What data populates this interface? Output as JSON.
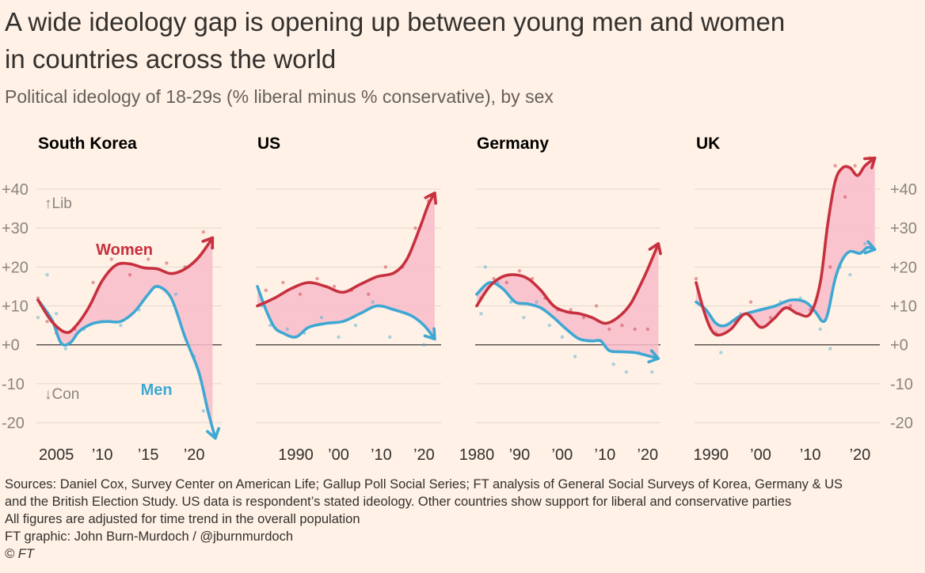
{
  "title_line1": "A wide ideology gap is opening up between young men and women",
  "title_line2": "in countries across the world",
  "subtitle": "Political ideology of 18-29s (% liberal minus % conservative), by sex",
  "footer": {
    "line1": "Sources: Daniel Cox, Survey Center on American Life; Gallup Poll Social Series; FT analysis of General Social Surveys of Korea, Germany & US",
    "line2": "and the British Election Study. US data is respondent’s stated ideology. Other countries show support for liberal and conservative parties",
    "line3": "All figures are adjusted for time trend in the overall population",
    "line4": "FT graphic: John Burn-Murdoch / @jburnmurdoch",
    "line5": "© FT"
  },
  "colors": {
    "women": "#c7303e",
    "men": "#3ea8d3",
    "gap_fill": "#f9bccb",
    "axis_label": "#8a8580",
    "gridline": "#e3d7cc",
    "zero_line": "#4d4845"
  },
  "chart_data": [
    {
      "type": "line",
      "title": "South Korea",
      "ylim": [
        -20,
        40
      ],
      "yticks": [
        -20,
        -10,
        0,
        10,
        20,
        30,
        40
      ],
      "ytick_labels": [
        "-20",
        "-10",
        "+0",
        "+10",
        "+20",
        "+30",
        "+40"
      ],
      "y_axis_annotations": [
        "↑Lib",
        "↓Con"
      ],
      "xlim": [
        2003,
        2023
      ],
      "xticks": [
        2005,
        2010,
        2015,
        2020
      ],
      "xtick_labels": [
        "2005",
        "’10",
        "’15",
        "’20"
      ],
      "series": [
        {
          "name": "Women",
          "color": "#c7303e",
          "x": [
            2003,
            2004.5,
            2006,
            2007,
            2008.5,
            2010,
            2011.5,
            2013,
            2014.5,
            2016,
            2017.5,
            2019,
            2020.5,
            2022
          ],
          "y": [
            11.5,
            6,
            3.2,
            4.5,
            9.5,
            16.5,
            20.5,
            20.8,
            19.8,
            19.5,
            18.3,
            19.5,
            22.5,
            27.5
          ]
        },
        {
          "name": "Men",
          "color": "#3ea8d3",
          "x": [
            2003,
            2004.5,
            2005.5,
            2006.5,
            2007.5,
            2009,
            2010.5,
            2012,
            2013.5,
            2015,
            2016,
            2017.5,
            2019,
            2020.5,
            2021.5,
            2022.3
          ],
          "y": [
            11.5,
            6.5,
            0.5,
            0.5,
            3.5,
            5.5,
            6,
            6,
            8.5,
            13,
            15,
            12,
            2,
            -7,
            -17,
            -24
          ]
        }
      ],
      "points": {
        "women": [
          [
            2003,
            12
          ],
          [
            2004,
            6
          ],
          [
            2005,
            3
          ],
          [
            2007,
            4
          ],
          [
            2009,
            16
          ],
          [
            2011,
            22
          ],
          [
            2013,
            18
          ],
          [
            2015,
            22
          ],
          [
            2017,
            21
          ],
          [
            2019,
            20
          ],
          [
            2021,
            29
          ],
          [
            2022,
            25
          ]
        ],
        "men": [
          [
            2003,
            7
          ],
          [
            2004,
            18
          ],
          [
            2005,
            8
          ],
          [
            2006,
            -1
          ],
          [
            2008,
            4
          ],
          [
            2010,
            6
          ],
          [
            2012,
            5
          ],
          [
            2014,
            9
          ],
          [
            2016,
            15
          ],
          [
            2018,
            13
          ],
          [
            2020,
            -3
          ],
          [
            2021,
            -17
          ]
        ]
      },
      "annotations": [
        {
          "text": "Women",
          "x": 2012.4,
          "y": 24.5,
          "color": "#c7303e"
        },
        {
          "text": "Men",
          "x": 2015.9,
          "y": -11.5,
          "color": "#3ea8d3"
        }
      ]
    },
    {
      "type": "line",
      "title": "US",
      "ylim": [
        -20,
        40
      ],
      "xlim": [
        1981,
        2024
      ],
      "xticks": [
        1990,
        2000,
        2010,
        2020
      ],
      "xtick_labels": [
        "1990",
        "’00",
        "’10",
        "’20"
      ],
      "series": [
        {
          "name": "Women",
          "color": "#c7303e",
          "x": [
            1981,
            1985,
            1989,
            1993,
            1997,
            2001,
            2005,
            2009,
            2013,
            2016,
            2019,
            2021,
            2022.5
          ],
          "y": [
            10,
            12,
            14.5,
            16,
            15,
            13.5,
            15.5,
            17.5,
            18.5,
            22,
            30,
            36,
            39
          ]
        },
        {
          "name": "Men",
          "color": "#3ea8d3",
          "x": [
            1981,
            1983,
            1985,
            1987,
            1990,
            1993,
            1997,
            2001,
            2005,
            2009,
            2013,
            2017,
            2020,
            2022.5
          ],
          "y": [
            15,
            9,
            4.5,
            3,
            2,
            4.5,
            5.5,
            6,
            8,
            10,
            9,
            7.5,
            5,
            1.5
          ]
        }
      ],
      "points": {
        "women": [
          [
            1983,
            14
          ],
          [
            1987,
            16
          ],
          [
            1991,
            13
          ],
          [
            1995,
            17
          ],
          [
            1999,
            15
          ],
          [
            2003,
            14
          ],
          [
            2007,
            13
          ],
          [
            2011,
            20
          ],
          [
            2015,
            20
          ],
          [
            2018,
            30
          ],
          [
            2021,
            37
          ]
        ],
        "men": [
          [
            1982,
            10
          ],
          [
            1984,
            5
          ],
          [
            1988,
            4
          ],
          [
            1992,
            3
          ],
          [
            1996,
            7
          ],
          [
            2000,
            2
          ],
          [
            2004,
            5
          ],
          [
            2008,
            11
          ],
          [
            2012,
            2
          ],
          [
            2016,
            8
          ],
          [
            2020,
            0
          ]
        ]
      }
    },
    {
      "type": "line",
      "title": "Germany",
      "ylim": [
        -20,
        40
      ],
      "xlim": [
        1980,
        2023
      ],
      "xticks": [
        1980,
        1990,
        2000,
        2010,
        2020
      ],
      "xtick_labels": [
        "1980",
        "’90",
        "’00",
        "’10",
        "’20"
      ],
      "series": [
        {
          "name": "Women",
          "color": "#c7303e",
          "x": [
            1980,
            1983,
            1986,
            1989,
            1992,
            1995,
            1998,
            2001,
            2004,
            2007,
            2010,
            2013,
            2016,
            2019,
            2021,
            2022.5
          ],
          "y": [
            10,
            15,
            17.5,
            18,
            17,
            14,
            10,
            8.5,
            8,
            7,
            5.5,
            7,
            10.5,
            17,
            22,
            26
          ]
        },
        {
          "name": "Men",
          "color": "#3ea8d3",
          "x": [
            1980,
            1983,
            1986,
            1989,
            1992,
            1995,
            1998,
            2001,
            2004,
            2007,
            2009,
            2011,
            2014,
            2017,
            2020,
            2022.5
          ],
          "y": [
            13,
            16,
            14.5,
            11,
            10.5,
            9.5,
            7,
            4,
            1.5,
            1,
            1,
            -1.5,
            -1.8,
            -2,
            -2.8,
            -3.5
          ]
        }
      ],
      "points": {
        "women": [
          [
            1981,
            12
          ],
          [
            1984,
            17
          ],
          [
            1987,
            16
          ],
          [
            1990,
            19
          ],
          [
            1993,
            17
          ],
          [
            1996,
            12
          ],
          [
            1999,
            9
          ],
          [
            2002,
            9
          ],
          [
            2005,
            7
          ],
          [
            2008,
            10
          ],
          [
            2011,
            4
          ],
          [
            2014,
            5
          ],
          [
            2017,
            4
          ],
          [
            2020,
            4
          ]
        ],
        "men": [
          [
            1981,
            8
          ],
          [
            1982,
            20
          ],
          [
            1985,
            16
          ],
          [
            1988,
            11
          ],
          [
            1991,
            7
          ],
          [
            1994,
            11
          ],
          [
            1997,
            5
          ],
          [
            2000,
            2
          ],
          [
            2003,
            -3
          ],
          [
            2006,
            1
          ],
          [
            2009,
            1
          ],
          [
            2012,
            -5
          ],
          [
            2015,
            -7
          ],
          [
            2018,
            -2
          ],
          [
            2021,
            -7
          ]
        ]
      }
    },
    {
      "type": "line",
      "title": "UK",
      "ylim": [
        -20,
        40
      ],
      "ytick_labels_right": [
        "-20",
        "-10",
        "+0",
        "+10",
        "+20",
        "+30",
        "+40"
      ],
      "xlim": [
        1987,
        2024
      ],
      "xticks": [
        1990,
        2000,
        2010,
        2020
      ],
      "xtick_labels": [
        "1990",
        "’00",
        "’10",
        "’20"
      ],
      "series": [
        {
          "name": "Women",
          "color": "#c7303e",
          "x": [
            1987,
            1988.5,
            1990,
            1991.5,
            1994,
            1997,
            2000,
            2002.5,
            2005,
            2007.5,
            2010,
            2012,
            2013.5,
            2015,
            2016.5,
            2018,
            2019.5,
            2021,
            2023
          ],
          "y": [
            16,
            9,
            4,
            2.5,
            4,
            8,
            4.5,
            6.5,
            9.5,
            8,
            8,
            16,
            31,
            42,
            45.5,
            45.5,
            43.5,
            46,
            48
          ]
        },
        {
          "name": "Men",
          "color": "#3ea8d3",
          "x": [
            1987,
            1989,
            1991,
            1993,
            1996,
            2000,
            2003,
            2006,
            2009,
            2011,
            2012.5,
            2013.5,
            2015,
            2016.5,
            2018,
            2020,
            2021.5,
            2023
          ],
          "y": [
            11,
            9,
            5.5,
            5,
            7.5,
            9,
            10,
            11.5,
            11,
            8.5,
            6,
            8,
            17,
            22,
            24,
            23.5,
            25,
            24.5
          ]
        }
      ],
      "points": {
        "women": [
          [
            1987,
            17
          ],
          [
            1991,
            3
          ],
          [
            1995,
            6
          ],
          [
            1998,
            11
          ],
          [
            2002,
            7
          ],
          [
            2006,
            10
          ],
          [
            2010,
            9
          ],
          [
            2014,
            20
          ],
          [
            2015,
            46
          ],
          [
            2017,
            38
          ],
          [
            2019,
            46
          ],
          [
            2022,
            48
          ]
        ],
        "men": [
          [
            1988,
            11
          ],
          [
            1992,
            -2
          ],
          [
            1996,
            8
          ],
          [
            2000,
            9
          ],
          [
            2004,
            11
          ],
          [
            2008,
            12
          ],
          [
            2012,
            4
          ],
          [
            2014,
            -1
          ],
          [
            2016,
            20
          ],
          [
            2018,
            18
          ],
          [
            2021,
            26
          ]
        ]
      }
    }
  ]
}
